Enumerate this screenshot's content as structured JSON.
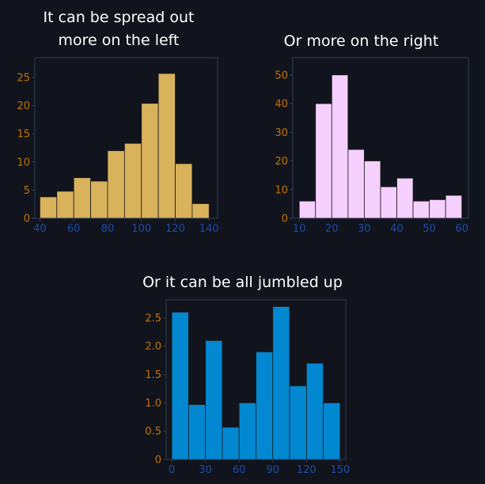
{
  "chart_data": [
    {
      "type": "bar",
      "title": "It can be spread out more on the left",
      "title_lines": [
        "It can be spread out",
        "more on the left"
      ],
      "bin_edges": [
        40,
        50,
        60,
        70,
        80,
        90,
        100,
        110,
        120,
        130,
        140
      ],
      "values": [
        3.8,
        4.8,
        7.2,
        6.6,
        12.0,
        13.3,
        20.4,
        25.7,
        9.7,
        2.6
      ],
      "xticks": [
        40,
        60,
        80,
        100,
        120,
        140
      ],
      "yticks": [
        0,
        5,
        10,
        15,
        20,
        25
      ],
      "xlim": [
        37,
        145
      ],
      "ylim": [
        0,
        28.5
      ],
      "xlabel": "",
      "ylabel": "",
      "bar_color": "#d9b25c",
      "grid": false
    },
    {
      "type": "bar",
      "title": "Or more on the right",
      "title_lines": [
        "Or more on the right"
      ],
      "bin_edges": [
        10,
        15,
        20,
        25,
        30,
        35,
        40,
        45,
        50,
        55,
        60
      ],
      "values": [
        6,
        40,
        50,
        24,
        20,
        11,
        14,
        6,
        6.5,
        8
      ],
      "xticks": [
        10,
        20,
        30,
        40,
        50,
        60
      ],
      "yticks": [
        0,
        10,
        20,
        30,
        40,
        50
      ],
      "xlim": [
        8,
        62
      ],
      "ylim": [
        0,
        56
      ],
      "xlabel": "",
      "ylabel": "",
      "bar_color": "#f5d0fe",
      "grid": false
    },
    {
      "type": "bar",
      "title": "Or it can be all jumbled up",
      "title_lines": [
        "Or it can be all jumbled up"
      ],
      "bin_edges": [
        0,
        15,
        30,
        45,
        60,
        75,
        90,
        105,
        120,
        135,
        150
      ],
      "values": [
        2.6,
        0.97,
        2.1,
        0.57,
        1.0,
        1.9,
        2.7,
        1.3,
        1.7,
        1.0
      ],
      "xticks": [
        0,
        30,
        60,
        90,
        120,
        150
      ],
      "yticks": [
        0,
        0.5,
        1.0,
        1.5,
        2.0,
        2.5
      ],
      "ytick_labels": [
        "0",
        "0.5",
        "1.0",
        "1.5",
        "2.0",
        "2.5"
      ],
      "xlim": [
        -5,
        155
      ],
      "ylim": [
        0,
        2.82
      ],
      "xlabel": "",
      "ylabel": "",
      "bar_color": "#0288d1",
      "grid": false
    }
  ],
  "colors": {
    "background": "#11141c",
    "axis": "#2d3c58",
    "tick_label_y": "#c0720c",
    "tick_label_x": "#1e4ba8",
    "bar_edge": "#1a1a1a",
    "title": "#ffffff"
  }
}
